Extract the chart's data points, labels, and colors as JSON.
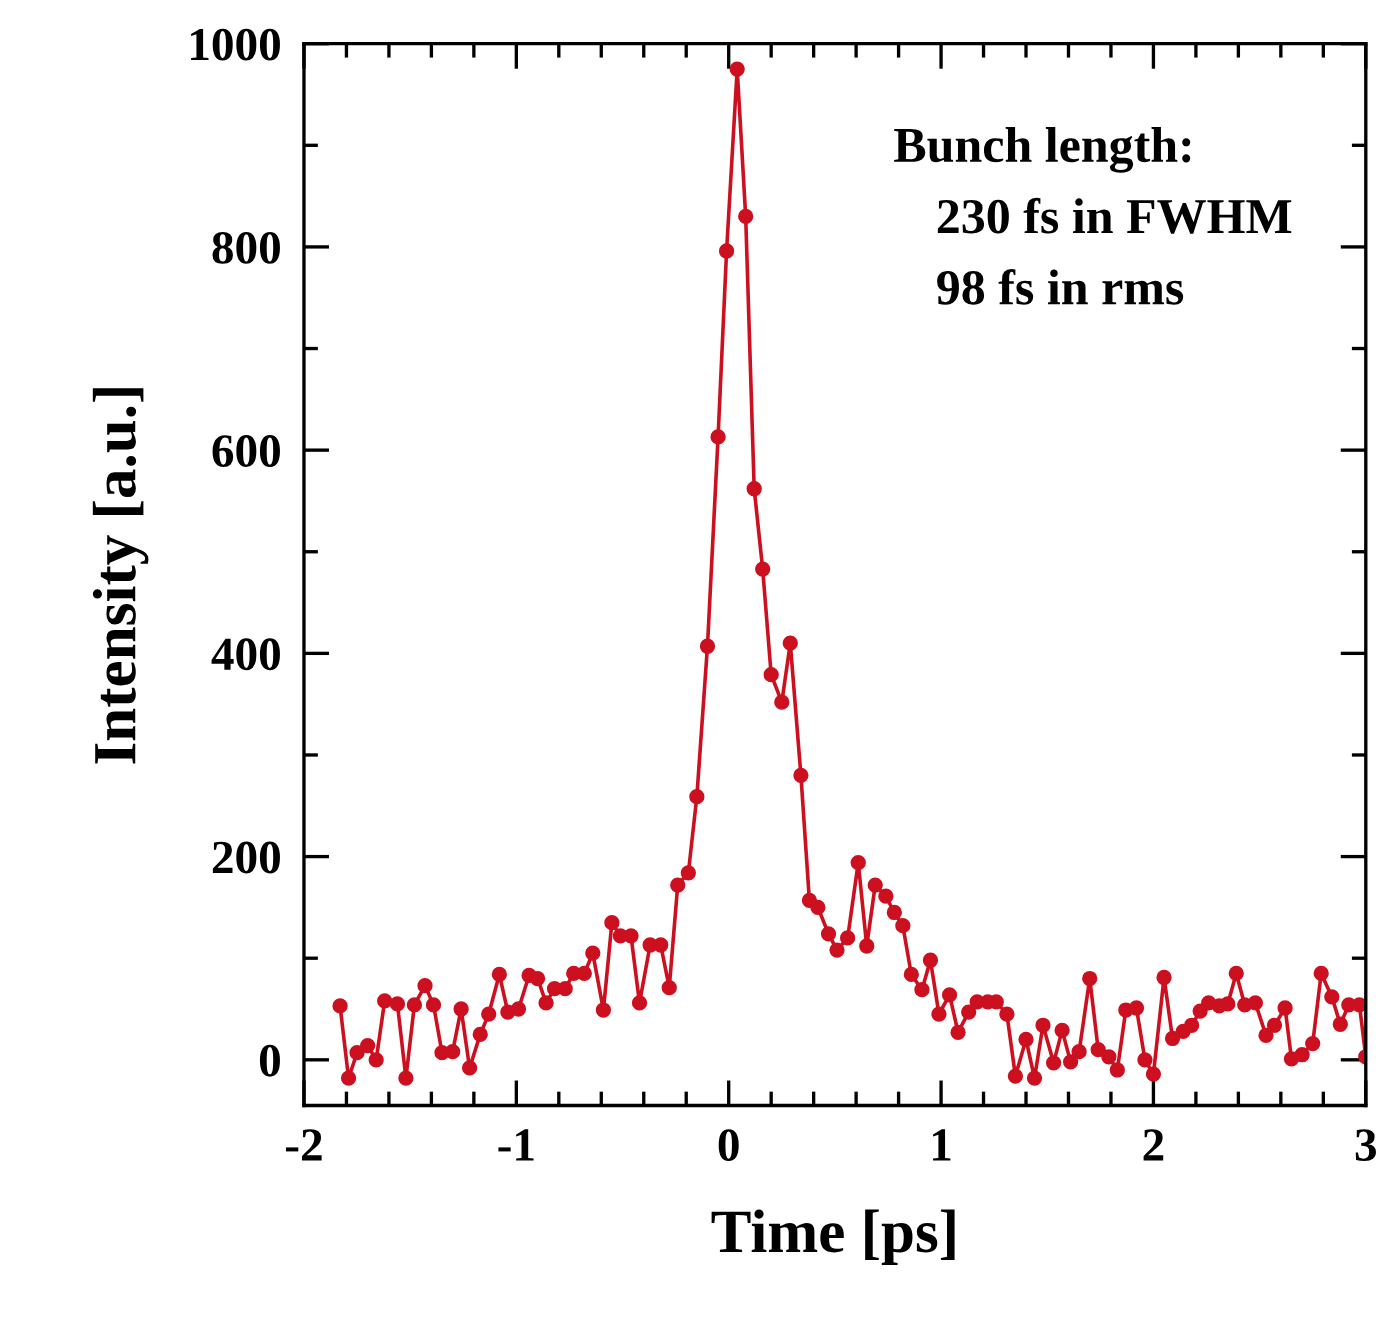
{
  "chart_data": {
    "type": "line",
    "xlabel": "Time [ps]",
    "ylabel": "Intensity [a.u.]",
    "annotations": [
      "Bunch length:",
      "230 fs in FWHM",
      "98 fs in rms"
    ],
    "xlim": [
      -2,
      3
    ],
    "xticks": [
      -2,
      -1,
      0,
      1,
      2,
      3
    ],
    "ylim": [
      -45,
      1000
    ],
    "yticks": [
      0,
      200,
      400,
      600,
      800,
      1000
    ],
    "grid": false,
    "legend": false,
    "marker": "circle",
    "line_style": "solid",
    "series": [
      {
        "color": "#cc1020",
        "x": [
          -1.83,
          -1.79,
          -1.75,
          -1.7,
          -1.66,
          -1.62,
          -1.56,
          -1.52,
          -1.48,
          -1.43,
          -1.39,
          -1.35,
          -1.3,
          -1.26,
          -1.22,
          -1.17,
          -1.13,
          -1.08,
          -1.04,
          -0.99,
          -0.94,
          -0.9,
          -0.86,
          -0.82,
          -0.77,
          -0.73,
          -0.68,
          -0.64,
          -0.59,
          -0.55,
          -0.51,
          -0.46,
          -0.42,
          -0.37,
          -0.32,
          -0.28,
          -0.24,
          -0.19,
          -0.15,
          -0.1,
          -0.05,
          -0.01,
          0.04,
          0.08,
          0.12,
          0.16,
          0.2,
          0.25,
          0.29,
          0.34,
          0.38,
          0.42,
          0.47,
          0.51,
          0.56,
          0.61,
          0.65,
          0.69,
          0.74,
          0.78,
          0.82,
          0.86,
          0.91,
          0.95,
          0.99,
          1.04,
          1.08,
          1.13,
          1.17,
          1.22,
          1.26,
          1.31,
          1.35,
          1.4,
          1.44,
          1.48,
          1.53,
          1.57,
          1.61,
          1.65,
          1.7,
          1.74,
          1.79,
          1.83,
          1.87,
          1.92,
          1.96,
          2.0,
          2.05,
          2.09,
          2.14,
          2.18,
          2.22,
          2.26,
          2.31,
          2.35,
          2.39,
          2.43,
          2.48,
          2.53,
          2.57,
          2.62,
          2.65,
          2.7,
          2.75,
          2.79,
          2.84,
          2.88,
          2.92,
          2.97,
          3.0
        ],
        "values": [
          53,
          -18,
          7,
          14,
          0,
          58,
          55,
          -18,
          54,
          73,
          54,
          7,
          8,
          50,
          -8,
          25,
          45,
          84,
          47,
          50,
          83,
          80,
          56,
          70,
          70,
          85,
          85,
          105,
          49,
          135,
          122,
          122,
          56,
          113,
          113,
          71,
          172,
          184,
          259,
          407,
          613,
          796,
          975,
          830,
          562,
          483,
          379,
          352,
          410,
          280,
          157,
          150,
          124,
          108,
          120,
          194,
          112,
          172,
          161,
          145,
          132,
          84,
          69,
          98,
          45,
          64,
          27,
          47,
          57,
          57,
          57,
          45,
          -16,
          20,
          -18,
          34,
          -3,
          29,
          -2,
          8,
          80,
          10,
          3,
          -10,
          49,
          51,
          0,
          -14,
          81,
          21,
          28,
          34,
          48,
          56,
          53,
          55,
          85,
          54,
          56,
          24,
          34,
          51,
          1,
          5,
          16,
          85,
          62,
          35,
          54,
          54,
          3
        ]
      }
    ]
  }
}
